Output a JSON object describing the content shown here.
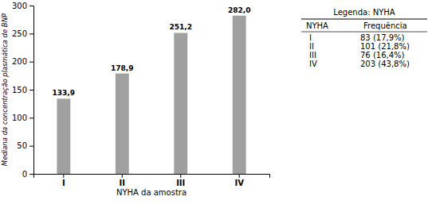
{
  "chart_data": {
    "type": "bar",
    "x_label": "NYHA da amostra",
    "y_label": "Mediana da concentração plasmática de BNP",
    "categories": [
      "I",
      "II",
      "III",
      "IV"
    ],
    "values": [
      133.9,
      178.9,
      251.2,
      282.0
    ],
    "value_labels": [
      "133,9",
      "178,9",
      "251,2",
      "282,0"
    ],
    "color": "#a0a0a0",
    "ylim": [
      0,
      300
    ],
    "yticks": [
      0,
      50,
      100,
      150,
      200,
      250,
      300
    ],
    "grid": false,
    "data_labels": true
  },
  "legend_table": {
    "title": "Legenda: NYHA",
    "header": [
      "NYHA",
      "Frequência"
    ],
    "rows": [
      [
        "I",
        "83 (17,9%)"
      ],
      [
        "II",
        "101 (21,8%)"
      ],
      [
        "III",
        "76 (16,4%)"
      ],
      [
        "IV",
        "203 (43,8%)"
      ]
    ]
  }
}
